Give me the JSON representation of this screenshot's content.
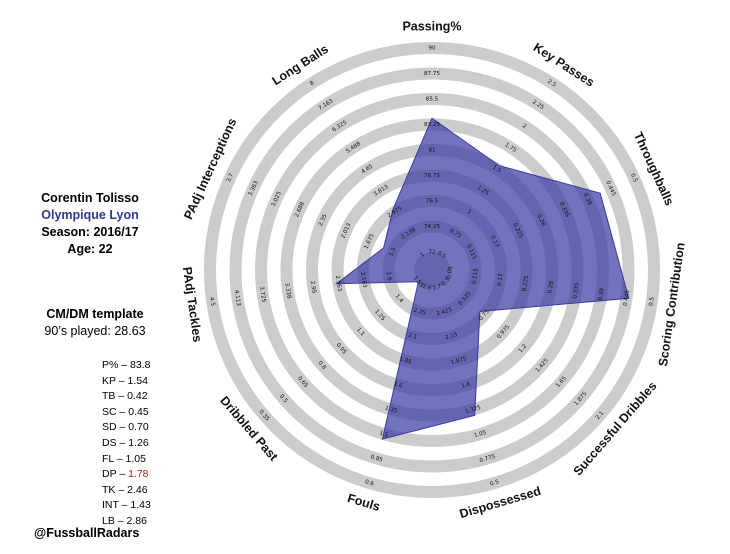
{
  "player": {
    "name": "Corentin Tolisso",
    "team": "Olympique Lyon",
    "season": "Season: 2016/17",
    "age": "Age: 22"
  },
  "template": {
    "name": "CM/DM template",
    "minutes": "90’s played: 28.63"
  },
  "stats_list": [
    {
      "label": "P% – ",
      "value": "83.8"
    },
    {
      "label": "KP – ",
      "value": "1.54"
    },
    {
      "label": "TB – ",
      "value": "0.42"
    },
    {
      "label": "SC – ",
      "value": "0.45"
    },
    {
      "label": "SD – ",
      "value": "0.70"
    },
    {
      "label": "DS – ",
      "value": "1.26"
    },
    {
      "label": "FL – ",
      "value": "1.05"
    },
    {
      "label": "DP – ",
      "value": "1.78"
    },
    {
      "label": "TK – ",
      "value": "2.46"
    },
    {
      "label": "INT – ",
      "value": "1.43"
    },
    {
      "label": "LB – ",
      "value": "2.86"
    }
  ],
  "credit": "@FussballRadars",
  "colors": {
    "fill": "#3b3ba3",
    "ring": "#cccccc",
    "highlight": "#b01c1c",
    "team": "#2e3a8c"
  },
  "chart_data": {
    "type": "radar",
    "axes": [
      {
        "label": "Passing%",
        "value": 83.8,
        "ticks": [
          "72",
          "74.25",
          "76.5",
          "78.75",
          "81",
          "83.25",
          "85.5",
          "87.75",
          "90"
        ]
      },
      {
        "label": "Key Passes",
        "value": 1.54,
        "ticks": [
          "0.5",
          "0.75",
          "1",
          "1.25",
          "1.5",
          "1.75",
          "2",
          "2.25",
          "2.5"
        ]
      },
      {
        "label": "Throughballs",
        "value": 0.42,
        "ticks": [
          "0.115",
          "0.17",
          "0.225",
          "0.28",
          "0.335",
          "0.39",
          "0.445",
          "0.5"
        ]
      },
      {
        "label": "Scoring Contribution",
        "value": 0.45,
        "ticks": [
          "0.06",
          "0.115",
          "0.17",
          "0.225",
          "0.28",
          "0.335",
          "0.39",
          "0.445",
          "0.5"
        ]
      },
      {
        "label": "Successful Dribbles",
        "value": 0.7,
        "ticks": [
          "0.3",
          "0.525",
          "0.75",
          "0.975",
          "1.2",
          "1.425",
          "1.65",
          "1.875",
          "2.1"
        ]
      },
      {
        "label": "Dispossessed",
        "value": 1.26,
        "ticks": [
          "2.7",
          "2.425",
          "2.15",
          "1.875",
          "1.6",
          "1.325",
          "1.05",
          "0.775",
          "0.5"
        ]
      },
      {
        "label": "Fouls",
        "value": 1.05,
        "ticks": [
          "2.6",
          "2.35",
          "2.1",
          "1.85",
          "1.6",
          "1.35",
          "1.1",
          "0.85",
          "0.6"
        ]
      },
      {
        "label": "Dribbled Past",
        "value": 1.78,
        "ticks": [
          "1.55",
          "1.4",
          "1.25",
          "1.1",
          "0.95",
          "0.8",
          "0.65",
          "0.5",
          "0.35"
        ]
      },
      {
        "label": "PAdj Tackles",
        "value": 2.46,
        "ticks": [
          "1.6",
          "2.163",
          "2.563",
          "2.95",
          "3.338",
          "3.725",
          "4.113",
          "4.5"
        ]
      },
      {
        "label": "PAdj Interceptions",
        "value": 1.43,
        "ticks": [
          "1.3",
          "1.675",
          "2.013",
          "2.35",
          "2.688",
          "3.025",
          "3.363",
          "3.7"
        ]
      },
      {
        "label": "Long Balls",
        "value": 2.86,
        "ticks": [
          "1",
          "2.138",
          "2.975",
          "3.813",
          "4.65",
          "5.488",
          "6.325",
          "7.163",
          "8"
        ]
      }
    ]
  }
}
